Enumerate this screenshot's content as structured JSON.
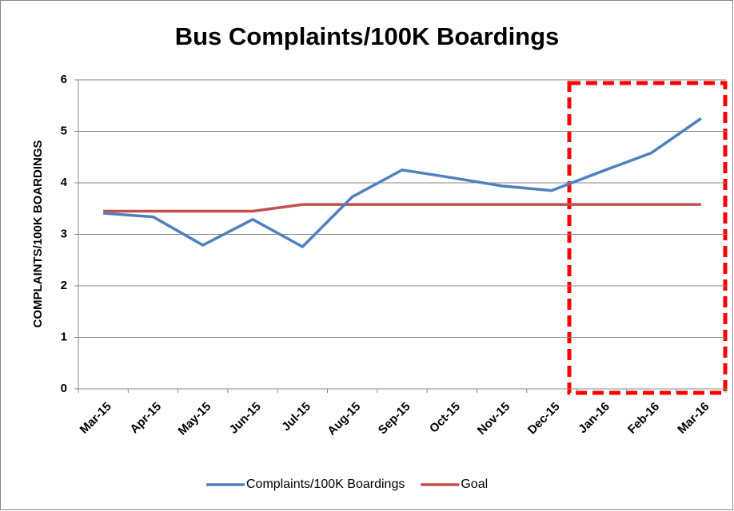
{
  "chart_data": {
    "type": "line",
    "title": "Bus Complaints/100K Boardings",
    "y_label": "COMPLAINTS/100K BOARDINGS",
    "categories": [
      "Mar-15",
      "Apr-15",
      "May-15",
      "Jun-15",
      "Jul-15",
      "Aug-15",
      "Sep-15",
      "Oct-15",
      "Nov-15",
      "Dec-15",
      "Jan-16",
      "Feb-16",
      "Mar-16"
    ],
    "series": [
      {
        "name": "Complaints/100K Boardings",
        "color": "#4f81bd",
        "values": [
          3.41,
          3.34,
          2.79,
          3.29,
          2.76,
          3.73,
          4.25,
          4.1,
          3.94,
          3.85,
          4.22,
          4.58,
          5.25
        ]
      },
      {
        "name": "Goal",
        "color": "#c0504d",
        "values": [
          3.45,
          3.45,
          3.45,
          3.45,
          3.58,
          3.58,
          3.58,
          3.58,
          3.58,
          3.58,
          3.58,
          3.58,
          3.58
        ]
      }
    ],
    "ylim": [
      0,
      6
    ],
    "yticks": [
      0,
      1,
      2,
      3,
      4,
      5,
      6
    ],
    "grid": true,
    "legend": "bottom"
  }
}
